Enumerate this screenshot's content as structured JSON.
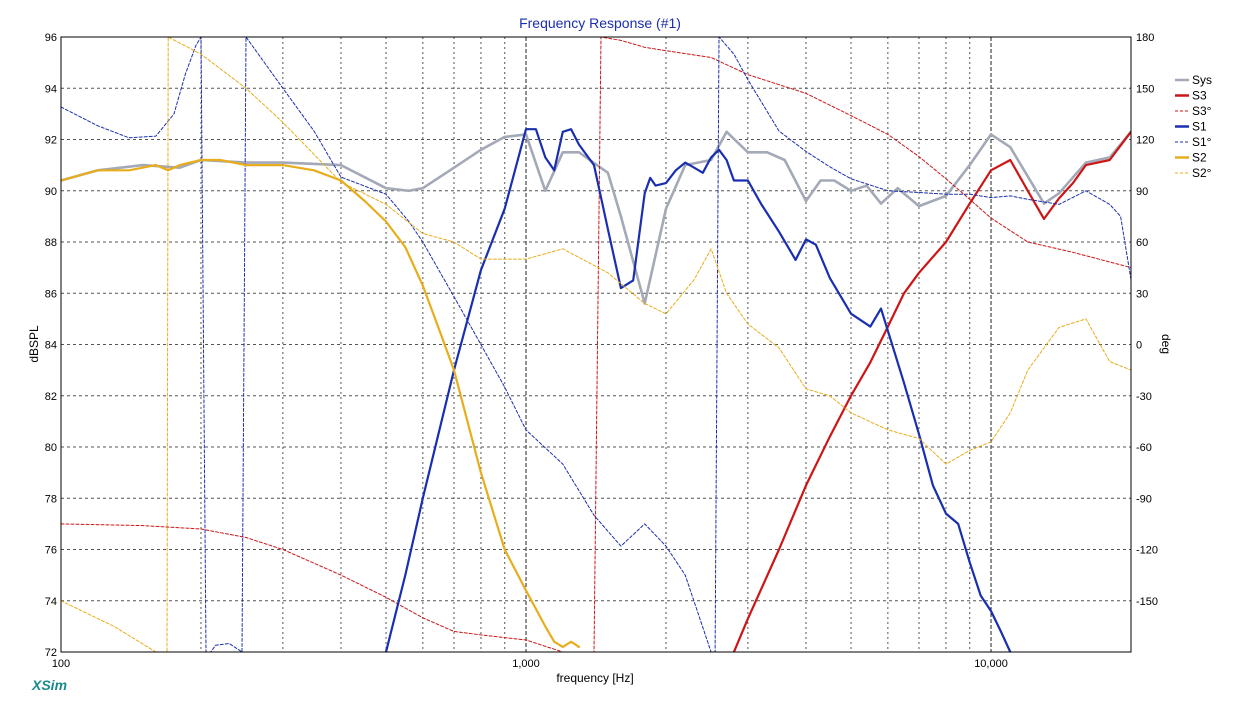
{
  "colors": {
    "sys": "#a3a9b6",
    "s3": "#cc1616",
    "s1": "#1a2fb0",
    "s2": "#e8ad1a",
    "title": "#1a2fb0",
    "brand": "#1b8a8a",
    "gridMinor": "#555555",
    "gridMajor": "#222222"
  },
  "chart_data": {
    "type": "line",
    "title": "Frequency Response (#1)",
    "xlabel": "frequency [Hz]",
    "ylabel": "dBSPL",
    "y2label": "deg",
    "xscale": "log",
    "xlim": [
      100,
      20000
    ],
    "ylim": [
      72,
      96
    ],
    "y2lim": [
      -180,
      180
    ],
    "grid": true,
    "legend_position": "right",
    "xticks": [
      {
        "value": 100,
        "label": "100"
      },
      {
        "value": 1000,
        "label": "1,000"
      },
      {
        "value": 10000,
        "label": "10,000"
      }
    ],
    "yticks": [
      "72",
      "74",
      "76",
      "78",
      "80",
      "82",
      "84",
      "86",
      "88",
      "90",
      "92",
      "94",
      "96"
    ],
    "y2ticks": [
      "180",
      "150",
      "120",
      "90",
      "60",
      "30",
      "0",
      "-30",
      "-60",
      "-90",
      "-120",
      "-150"
    ],
    "series": [
      {
        "name": "Sys",
        "key": "sys",
        "axis": "left",
        "style": "solid",
        "width": 2.6,
        "x": [
          100,
          120,
          150,
          180,
          200,
          250,
          300,
          400,
          500,
          560,
          600,
          700,
          800,
          900,
          1000,
          1100,
          1200,
          1300,
          1500,
          1600,
          1800,
          2000,
          2200,
          2500,
          2700,
          3000,
          3300,
          3600,
          4000,
          4300,
          4600,
          5000,
          5400,
          5800,
          6300,
          7000,
          8000,
          9000,
          10000,
          11000,
          13000,
          14000,
          16000,
          18000,
          20000
        ],
        "y": [
          90.4,
          90.8,
          91.0,
          90.9,
          91.2,
          91.1,
          91.1,
          91.0,
          90.1,
          90.0,
          90.1,
          90.9,
          91.6,
          92.1,
          92.2,
          90.0,
          91.5,
          91.5,
          90.7,
          89.0,
          85.6,
          89.3,
          91.0,
          91.2,
          92.3,
          91.5,
          91.5,
          91.2,
          89.6,
          90.4,
          90.4,
          90.0,
          90.2,
          89.5,
          90.1,
          89.4,
          89.8,
          91.0,
          92.2,
          91.7,
          89.5,
          89.9,
          91.1,
          91.3,
          92.3
        ]
      },
      {
        "name": "S3",
        "key": "s3",
        "axis": "left",
        "style": "solid",
        "width": 2.2,
        "x": [
          2800,
          3000,
          3500,
          4000,
          4500,
          5000,
          5500,
          6000,
          6500,
          7000,
          8000,
          9000,
          10000,
          11000,
          12000,
          13000,
          14000,
          15000,
          16000,
          18000,
          20000
        ],
        "y": [
          72.0,
          73.3,
          76.0,
          78.5,
          80.4,
          82.0,
          83.3,
          84.7,
          86.0,
          86.8,
          88.0,
          89.5,
          90.8,
          91.2,
          90.0,
          88.9,
          89.7,
          90.3,
          91.0,
          91.2,
          92.3
        ]
      },
      {
        "name": "S3°",
        "key": "s3",
        "axis": "right",
        "style": "dashed",
        "width": 1,
        "x": [
          100,
          150,
          200,
          250,
          300,
          400,
          500,
          600,
          700,
          800,
          1000,
          1200,
          1400,
          1450,
          1600,
          1800,
          2000,
          2500,
          3000,
          4000,
          5000,
          6000,
          7000,
          8000,
          9000,
          10000,
          12000,
          15000,
          20000
        ],
        "y": [
          -105,
          -106,
          -108,
          -113,
          -120,
          -135,
          -148,
          -160,
          -168,
          -170,
          -173,
          -180,
          -180,
          180,
          178,
          174,
          172,
          168,
          158,
          147,
          134,
          123,
          110,
          97,
          85,
          74,
          60,
          54,
          45
        ]
      },
      {
        "name": "S1",
        "key": "s1",
        "axis": "left",
        "style": "solid",
        "width": 2.2,
        "x": [
          500,
          550,
          600,
          700,
          800,
          900,
          1000,
          1050,
          1100,
          1150,
          1200,
          1250,
          1300,
          1400,
          1500,
          1600,
          1700,
          1800,
          1850,
          1900,
          2000,
          2100,
          2200,
          2300,
          2400,
          2500,
          2600,
          2700,
          2800,
          3000,
          3200,
          3500,
          3800,
          4000,
          4200,
          4500,
          5000,
          5500,
          5800,
          6200,
          6500,
          7000,
          7500,
          8000,
          8500,
          9000,
          9500,
          10000,
          10500,
          11000
        ],
        "y": [
          72.0,
          75.0,
          78.0,
          83.0,
          86.9,
          89.3,
          92.4,
          92.4,
          91.3,
          90.8,
          92.3,
          92.4,
          91.8,
          91.0,
          88.5,
          86.2,
          86.5,
          89.9,
          90.5,
          90.2,
          90.3,
          90.8,
          91.1,
          90.9,
          90.7,
          91.3,
          91.6,
          91.2,
          90.4,
          90.4,
          89.5,
          88.4,
          87.3,
          88.1,
          87.9,
          86.6,
          85.2,
          84.7,
          85.4,
          83.7,
          82.5,
          80.5,
          78.5,
          77.4,
          77.0,
          75.5,
          74.2,
          73.6,
          72.8,
          72.0
        ]
      },
      {
        "name": "S1°",
        "key": "s1",
        "axis": "right",
        "style": "dashed",
        "width": 1,
        "x": [
          100,
          120,
          140,
          160,
          175,
          185,
          195,
          200,
          205,
          210,
          215,
          230,
          245,
          250,
          300,
          350,
          400,
          500,
          560,
          600,
          700,
          800,
          900,
          1000,
          1200,
          1400,
          1600,
          1800,
          2000,
          2200,
          2500,
          2550,
          2600,
          2800,
          3000,
          3500,
          4000,
          4500,
          5000,
          6000,
          7000,
          8000,
          9000,
          10000,
          11000,
          12000,
          14000,
          16000,
          18000,
          19000,
          20000
        ],
        "y": [
          139,
          128,
          121,
          122,
          135,
          158,
          175,
          180,
          -180,
          -180,
          -176,
          -175,
          -180,
          180,
          150,
          125,
          98,
          88,
          72,
          60,
          28,
          0,
          -25,
          -50,
          -70,
          -100,
          -118,
          -105,
          -118,
          -135,
          -180,
          -180,
          180,
          170,
          155,
          125,
          113,
          104,
          97,
          90,
          89,
          88,
          88,
          86,
          87,
          85,
          82,
          90,
          82,
          75,
          38
        ]
      },
      {
        "name": "S2",
        "key": "s2",
        "axis": "left",
        "style": "solid",
        "width": 2.2,
        "x": [
          100,
          120,
          140,
          160,
          170,
          180,
          200,
          220,
          250,
          300,
          350,
          400,
          450,
          500,
          550,
          600,
          650,
          700,
          800,
          900,
          1000,
          1100,
          1150,
          1200,
          1250,
          1300
        ],
        "y": [
          90.4,
          90.8,
          90.8,
          91.0,
          90.8,
          91.0,
          91.2,
          91.2,
          91.0,
          91.0,
          90.8,
          90.4,
          89.6,
          88.8,
          87.8,
          86.3,
          84.6,
          83.0,
          79.0,
          76.0,
          74.4,
          73.0,
          72.4,
          72.2,
          72.4,
          72.2
        ]
      },
      {
        "name": "S2°",
        "key": "s2",
        "axis": "right",
        "style": "dashed",
        "width": 1,
        "x": [
          100,
          130,
          160,
          169,
          170,
          200,
          250,
          300,
          400,
          500,
          600,
          700,
          800,
          1000,
          1200,
          1500,
          1800,
          2000,
          2300,
          2500,
          2700,
          3000,
          3500,
          4000,
          4500,
          5000,
          6000,
          7000,
          8000,
          9000,
          10000,
          11000,
          12000,
          14000,
          16000,
          18000,
          20000
        ],
        "y": [
          -150,
          -165,
          -180,
          -180,
          180,
          170,
          150,
          130,
          95,
          82,
          65,
          60,
          50,
          50,
          56,
          42,
          24,
          18,
          38,
          56,
          30,
          12,
          -2,
          -26,
          -30,
          -40,
          -50,
          -55,
          -70,
          -62,
          -57,
          -40,
          -15,
          10,
          15,
          -10,
          -15
        ]
      }
    ]
  },
  "brand": "XSim"
}
